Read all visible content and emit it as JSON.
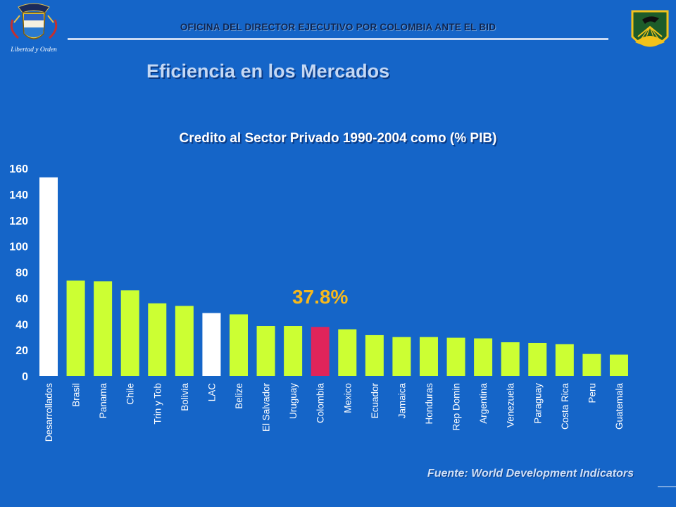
{
  "header": {
    "office_title": "OFICINA DEL DIRECTOR EJECUTIVO POR COLOMBIA ANTE EL BID",
    "crest_caption": "Libertad y Orden"
  },
  "page_title": "Eficiencia en los Mercados",
  "source": "Fuente: World Development Indicators",
  "chart_data": {
    "type": "bar",
    "title": "Credito al Sector Privado 1990-2004 como (% PIB)",
    "xlabel": "",
    "ylabel": "",
    "ylim": [
      0,
      160
    ],
    "yticks": [
      0,
      20,
      40,
      60,
      80,
      100,
      120,
      140,
      160
    ],
    "grid": false,
    "categories": [
      "Desarrollados",
      "Brasil",
      "Panama",
      "Chile",
      "Trin y Tob",
      "Bolivia",
      "LAC",
      "Belize",
      "El Salvador",
      "Uruguay",
      "Colombia",
      "Mexico",
      "Ecuador",
      "Jamaica",
      "Honduras",
      "Rep Domin",
      "Argentina",
      "Venezuela",
      "Paraguay",
      "Costa Rica",
      "Peru",
      "Guatemala"
    ],
    "values": [
      153,
      73.5,
      73,
      66,
      56,
      54,
      48.5,
      47.5,
      38.5,
      38.5,
      37.8,
      36,
      31.5,
      30,
      30,
      29.5,
      29,
      26,
      25.5,
      24.5,
      17,
      16.5
    ],
    "bar_colors": [
      "#ffffff",
      "#ccff33",
      "#ccff33",
      "#ccff33",
      "#ccff33",
      "#ccff33",
      "#ffffff",
      "#ccff33",
      "#ccff33",
      "#ccff33",
      "#e0245a",
      "#ccff33",
      "#ccff33",
      "#ccff33",
      "#ccff33",
      "#ccff33",
      "#ccff33",
      "#ccff33",
      "#ccff33",
      "#ccff33",
      "#ccff33",
      "#ccff33"
    ],
    "annotation": {
      "text": "37.8%",
      "category": "Colombia",
      "color": "#f6b81c"
    }
  }
}
